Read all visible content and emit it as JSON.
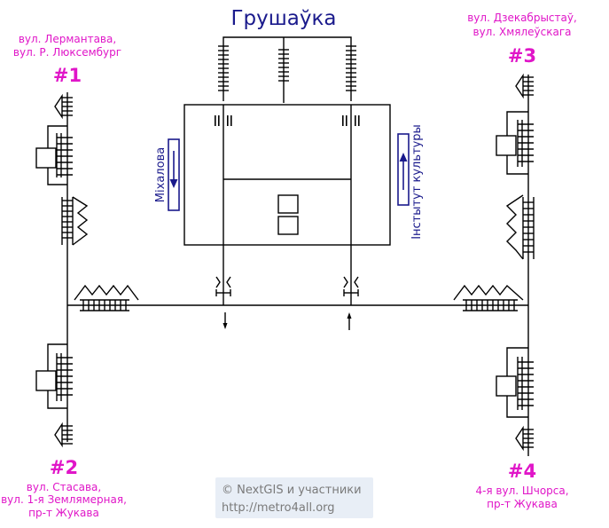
{
  "station": {
    "title": "Грушаўка"
  },
  "colors": {
    "title": "#1a1a8c",
    "exit_text": "#e016c8",
    "platform_label": "#1a1a8c",
    "platform_box": "#1a1a8c",
    "lines": "#000000",
    "credit_bg": "#e8eef6",
    "credit_text": "#7a7a7a"
  },
  "exits": [
    {
      "id": "1",
      "number": "#1",
      "lines": [
        "вул. Лермантава,",
        "вул. Р. Люксембург"
      ]
    },
    {
      "id": "2",
      "number": "#2",
      "lines": [
        "вул. Стасава,",
        "вул. 1-я Землямерная,",
        "пр-т Жукава"
      ]
    },
    {
      "id": "3",
      "number": "#3",
      "lines": [
        "вул. Дзекабрыстаў,",
        "вул. Хмялеўскага"
      ]
    },
    {
      "id": "4",
      "number": "#4",
      "lines": [
        "4-я вул. Шчорса,",
        "пр-т Жукава"
      ]
    }
  ],
  "platforms": {
    "left": {
      "label": "Міхалова",
      "direction": "down"
    },
    "right": {
      "label": "Інстытут культуры",
      "direction": "up"
    }
  },
  "credits": {
    "line1": "© NextGIS и участники",
    "line2": "http://metro4all.org"
  }
}
